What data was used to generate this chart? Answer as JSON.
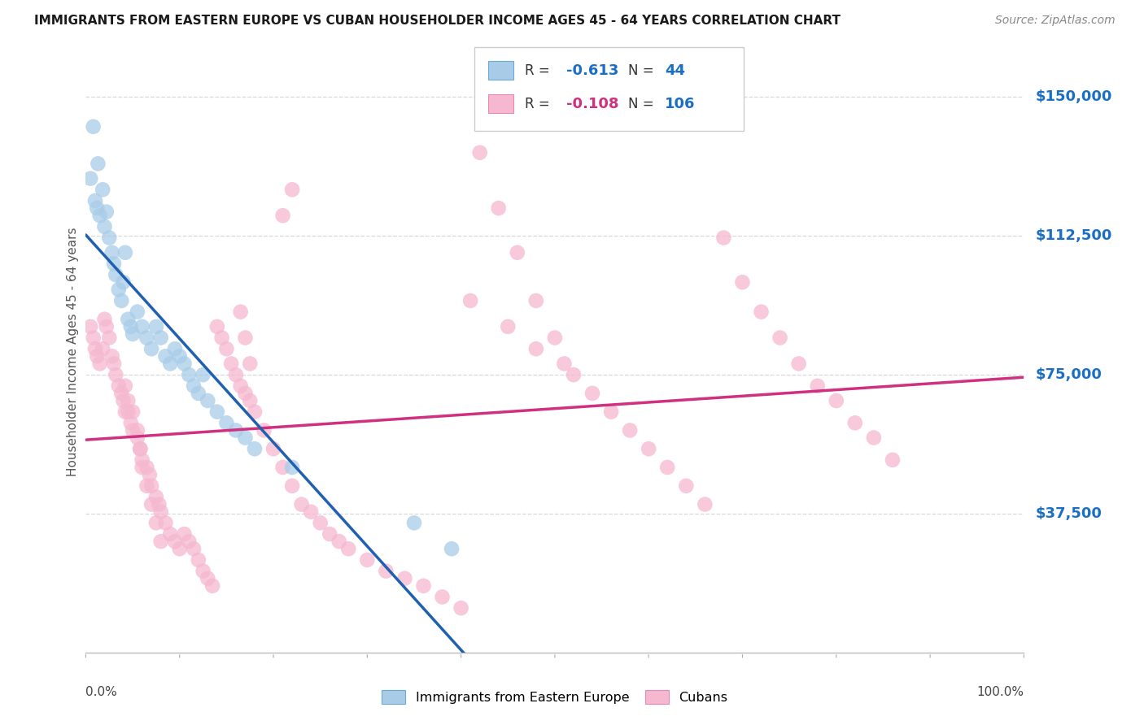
{
  "title": "IMMIGRANTS FROM EASTERN EUROPE VS CUBAN HOUSEHOLDER INCOME AGES 45 - 64 YEARS CORRELATION CHART",
  "source": "Source: ZipAtlas.com",
  "ylabel": "Householder Income Ages 45 - 64 years",
  "legend1_R": "-0.613",
  "legend1_N": "44",
  "legend2_R": "-0.108",
  "legend2_N": "106",
  "blue_color": "#a8cce8",
  "blue_edge_color": "#6aaad8",
  "pink_color": "#f5b8ce",
  "pink_edge_color": "#e888b8",
  "blue_line_color": "#2060b0",
  "pink_line_color": "#d03080",
  "dashed_blue_color": "#90bbdd",
  "xlim": [
    0,
    1.0
  ],
  "ylim": [
    0,
    162500
  ],
  "ytick_vals": [
    0,
    37500,
    75000,
    112500,
    150000
  ],
  "ytick_labels": [
    "",
    "$37,500",
    "$75,000",
    "$112,500",
    "$150,000"
  ],
  "background_color": "#ffffff",
  "grid_color": "#d8d8d8",
  "blue_x": [
    0.005,
    0.01,
    0.012,
    0.015,
    0.018,
    0.008,
    0.013,
    0.02,
    0.022,
    0.025,
    0.028,
    0.03,
    0.032,
    0.035,
    0.038,
    0.04,
    0.042,
    0.045,
    0.048,
    0.05,
    0.055,
    0.06,
    0.065,
    0.07,
    0.075,
    0.08,
    0.085,
    0.09,
    0.095,
    0.1,
    0.105,
    0.11,
    0.115,
    0.12,
    0.125,
    0.13,
    0.14,
    0.15,
    0.16,
    0.17,
    0.18,
    0.22,
    0.35,
    0.39
  ],
  "blue_y": [
    128000,
    122000,
    120000,
    118000,
    125000,
    142000,
    132000,
    115000,
    119000,
    112000,
    108000,
    105000,
    102000,
    98000,
    95000,
    100000,
    108000,
    90000,
    88000,
    86000,
    92000,
    88000,
    85000,
    82000,
    88000,
    85000,
    80000,
    78000,
    82000,
    80000,
    78000,
    75000,
    72000,
    70000,
    75000,
    68000,
    65000,
    62000,
    60000,
    58000,
    55000,
    50000,
    35000,
    28000
  ],
  "pink_x": [
    0.005,
    0.008,
    0.01,
    0.012,
    0.015,
    0.018,
    0.02,
    0.022,
    0.025,
    0.028,
    0.03,
    0.032,
    0.035,
    0.038,
    0.04,
    0.042,
    0.045,
    0.048,
    0.05,
    0.055,
    0.058,
    0.06,
    0.065,
    0.068,
    0.07,
    0.075,
    0.078,
    0.08,
    0.085,
    0.09,
    0.095,
    0.1,
    0.105,
    0.11,
    0.115,
    0.12,
    0.125,
    0.13,
    0.135,
    0.14,
    0.145,
    0.15,
    0.155,
    0.16,
    0.165,
    0.17,
    0.175,
    0.18,
    0.19,
    0.2,
    0.21,
    0.22,
    0.23,
    0.24,
    0.25,
    0.26,
    0.27,
    0.28,
    0.3,
    0.32,
    0.34,
    0.36,
    0.38,
    0.4,
    0.42,
    0.44,
    0.46,
    0.48,
    0.5,
    0.52,
    0.54,
    0.56,
    0.58,
    0.6,
    0.62,
    0.64,
    0.66,
    0.68,
    0.7,
    0.72,
    0.74,
    0.76,
    0.78,
    0.8,
    0.82,
    0.84,
    0.86,
    0.21,
    0.22,
    0.165,
    0.17,
    0.175,
    0.042,
    0.045,
    0.05,
    0.055,
    0.058,
    0.06,
    0.065,
    0.07,
    0.075,
    0.08,
    0.41,
    0.45,
    0.48,
    0.51
  ],
  "pink_y": [
    88000,
    85000,
    82000,
    80000,
    78000,
    82000,
    90000,
    88000,
    85000,
    80000,
    78000,
    75000,
    72000,
    70000,
    68000,
    65000,
    65000,
    62000,
    60000,
    58000,
    55000,
    52000,
    50000,
    48000,
    45000,
    42000,
    40000,
    38000,
    35000,
    32000,
    30000,
    28000,
    32000,
    30000,
    28000,
    25000,
    22000,
    20000,
    18000,
    88000,
    85000,
    82000,
    78000,
    75000,
    72000,
    70000,
    68000,
    65000,
    60000,
    55000,
    50000,
    45000,
    40000,
    38000,
    35000,
    32000,
    30000,
    28000,
    25000,
    22000,
    20000,
    18000,
    15000,
    12000,
    135000,
    120000,
    108000,
    95000,
    85000,
    75000,
    70000,
    65000,
    60000,
    55000,
    50000,
    45000,
    40000,
    112000,
    100000,
    92000,
    85000,
    78000,
    72000,
    68000,
    62000,
    58000,
    52000,
    118000,
    125000,
    92000,
    85000,
    78000,
    72000,
    68000,
    65000,
    60000,
    55000,
    50000,
    45000,
    40000,
    35000,
    30000,
    95000,
    88000,
    82000,
    78000
  ]
}
